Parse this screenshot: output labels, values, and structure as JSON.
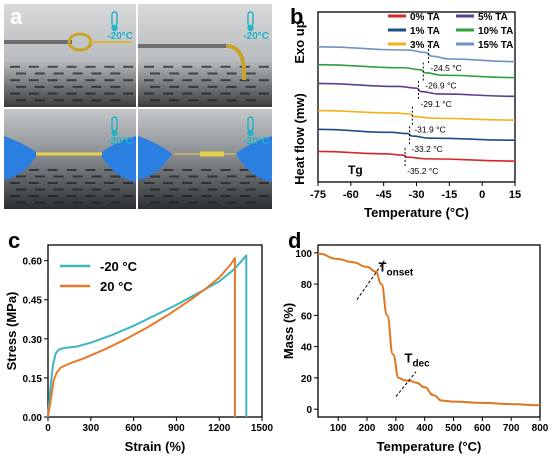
{
  "panels": {
    "a": {
      "letter": "a",
      "photos": [
        {
          "temp": "-20°C",
          "scene": "loop"
        },
        {
          "temp": "-20°C",
          "scene": "bent"
        },
        {
          "temp": "-20°C",
          "scene": "stretch-long"
        },
        {
          "temp": "-20°C",
          "scene": "stretch-short"
        }
      ],
      "accent_color": "#1fb3c8"
    },
    "b": {
      "letter": "b"
    },
    "c": {
      "letter": "c"
    },
    "d": {
      "letter": "d"
    }
  },
  "chart_data": [
    {
      "id": "b",
      "type": "line",
      "title": "",
      "xlabel": "Temperature (°C)",
      "ylabel": "Heat flow (mw)",
      "ylabel_extra": "Exo up",
      "xlim": [
        -75,
        15
      ],
      "xticks": [
        -75,
        -60,
        -45,
        -30,
        -15,
        0,
        15
      ],
      "xtick_labels": [
        "-75",
        "-60",
        "-45",
        "-30",
        "-15",
        "0",
        "15"
      ],
      "y_ticks": false,
      "legend_placement": "top-right",
      "legend_columns": 2,
      "annotation": "Tg",
      "series": [
        {
          "name": "0%  TA",
          "color": "#d62728",
          "tg": -35.2,
          "tg_label": "-35.2 °C",
          "x": [
            -75,
            -45,
            -36,
            -34,
            -25,
            15
          ],
          "y": [
            18.0,
            16.6,
            15.8,
            14.6,
            13.6,
            12.3
          ]
        },
        {
          "name": "1%  TA",
          "color": "#1a4c8b",
          "tg": -33.2,
          "tg_label": "-33.2 °C",
          "x": [
            -75,
            -42,
            -34,
            -32,
            -24,
            15
          ],
          "y": [
            31.0,
            29.2,
            28.5,
            27.0,
            25.8,
            24.6
          ]
        },
        {
          "name": "3%  TA",
          "color": "#f2b21b",
          "tg": -31.9,
          "tg_label": "-31.9 °C",
          "x": [
            -75,
            -40,
            -33,
            -31,
            -22,
            15
          ],
          "y": [
            42.0,
            40.6,
            40.0,
            38.5,
            37.5,
            36.4
          ]
        },
        {
          "name": "5%  TA",
          "color": "#5a3e8f",
          "tg": -29.1,
          "tg_label": "-29.1 °C",
          "x": [
            -75,
            -38,
            -30,
            -28,
            -20,
            15
          ],
          "y": [
            58.0,
            56.2,
            55.2,
            53.2,
            51.8,
            50.4
          ]
        },
        {
          "name": "10%  TA",
          "color": "#2e9e3e",
          "tg": -26.9,
          "tg_label": "-26.9 °C",
          "x": [
            -75,
            -36,
            -28,
            -26,
            -18,
            15
          ],
          "y": [
            69.0,
            67.2,
            66.0,
            64.2,
            62.8,
            61.4
          ]
        },
        {
          "name": "15%  TA",
          "color": "#6f92c4",
          "tg": -24.5,
          "tg_label": "-24.5 °C",
          "x": [
            -75,
            -34,
            -26,
            -23,
            -15,
            15
          ],
          "y": [
            79.5,
            77.6,
            76.2,
            74.0,
            72.4,
            70.8
          ]
        }
      ]
    },
    {
      "id": "c",
      "type": "line",
      "title": "",
      "xlabel": "Strain (%)",
      "ylabel": "Stress (MPa)",
      "xlim": [
        0,
        1500
      ],
      "ylim": [
        0,
        0.66
      ],
      "xticks": [
        0,
        300,
        600,
        900,
        1200,
        1500
      ],
      "xtick_labels": [
        "0",
        "300",
        "600",
        "900",
        "1200",
        "1500"
      ],
      "yticks": [
        0,
        0.15,
        0.3,
        0.45,
        0.6
      ],
      "ytick_labels": [
        "0.00",
        "0.15",
        "0.30",
        "0.45",
        "0.60"
      ],
      "legend_placement": "top-left",
      "series": [
        {
          "name": "-20 °C",
          "color": "#3bb6c2",
          "x": [
            0,
            15,
            35,
            55,
            80,
            120,
            200,
            300,
            450,
            600,
            750,
            900,
            1050,
            1200,
            1300,
            1360,
            1390,
            1390
          ],
          "y": [
            0,
            0.1,
            0.2,
            0.245,
            0.26,
            0.265,
            0.27,
            0.285,
            0.315,
            0.35,
            0.39,
            0.43,
            0.475,
            0.52,
            0.565,
            0.6,
            0.62,
            0
          ]
        },
        {
          "name": "20 °C",
          "color": "#e8782a",
          "x": [
            0,
            20,
            40,
            60,
            90,
            150,
            250,
            400,
            550,
            700,
            850,
            1000,
            1100,
            1200,
            1280,
            1310,
            1310
          ],
          "y": [
            0,
            0.07,
            0.14,
            0.17,
            0.19,
            0.205,
            0.225,
            0.26,
            0.3,
            0.345,
            0.395,
            0.45,
            0.49,
            0.535,
            0.585,
            0.61,
            0
          ]
        }
      ]
    },
    {
      "id": "d",
      "type": "line",
      "title": "",
      "xlabel": "Temperature (°C)",
      "ylabel": "Mass (%)",
      "xlim": [
        30,
        800
      ],
      "ylim": [
        -5,
        105
      ],
      "xticks": [
        100,
        200,
        300,
        400,
        500,
        600,
        700,
        800
      ],
      "xtick_labels": [
        "100",
        "200",
        "300",
        "400",
        "500",
        "600",
        "700",
        "800"
      ],
      "yticks": [
        0,
        20,
        40,
        60,
        80,
        100
      ],
      "ytick_labels": [
        "0",
        "20",
        "40",
        "60",
        "80",
        "100"
      ],
      "annotations": [
        {
          "text": "T",
          "sub": "onset",
          "x": 215,
          "y": 90
        },
        {
          "text": "T",
          "sub": "dec",
          "x": 345,
          "y": 20
        }
      ],
      "series": [
        {
          "name": "",
          "color": "#e0771f",
          "x": [
            30,
            100,
            150,
            200,
            230,
            250,
            270,
            290,
            310,
            330,
            350,
            370,
            400,
            430,
            460,
            500,
            600,
            700,
            800
          ],
          "y": [
            99.5,
            96,
            94,
            91,
            88,
            80,
            60,
            35,
            20,
            18.5,
            18,
            17,
            14,
            9,
            5.5,
            4.8,
            4.0,
            3.2,
            2.5
          ]
        }
      ]
    }
  ]
}
